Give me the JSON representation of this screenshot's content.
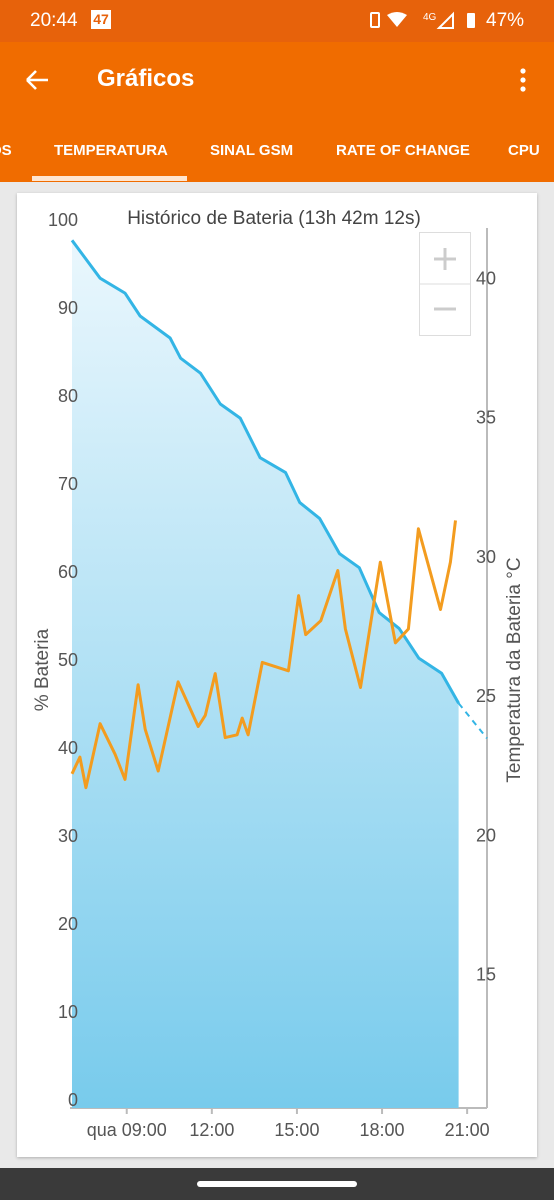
{
  "status_bar": {
    "time": "20:44",
    "notification": "47",
    "battery": "47%"
  },
  "app_bar": {
    "title": "Gráficos"
  },
  "tabs": [
    "OS",
    "TEMPERATURA",
    "SINAL GSM",
    "RATE OF CHANGE",
    "CPU"
  ],
  "selected_tab": 1,
  "chart_data": {
    "type": "line",
    "title": "Histórico de Bateria (13h 42m 12s)",
    "y_label": "% Bateria",
    "y2_label": "Temperatura da Bateria °C",
    "xlim": [
      7,
      21.7
    ],
    "xticks": [
      {
        "value": 9,
        "label": "qua 09:00"
      },
      {
        "value": 12,
        "label": "12:00"
      },
      {
        "value": 15,
        "label": "15:00"
      },
      {
        "value": 18,
        "label": "18:00"
      },
      {
        "value": 21,
        "label": "21:00"
      }
    ],
    "ylim": [
      0,
      100
    ],
    "yticks": [
      0,
      10,
      20,
      30,
      40,
      50,
      60,
      70,
      80,
      90,
      100
    ],
    "y2lim": [
      10.5,
      42.1
    ],
    "y2ticks": [
      15,
      20,
      25,
      30,
      35,
      40
    ],
    "series": [
      {
        "color": "#33b5e5",
        "fill": true,
        "x": [
          7.07,
          8.06,
          8.94,
          9.47,
          10.53,
          10.9,
          11.6,
          12.3,
          13.0,
          13.7,
          14.6,
          15.1,
          15.8,
          16.5,
          17.2,
          17.9,
          18.6,
          19.3,
          20.1,
          20.7
        ],
        "values": [
          98.6,
          94.3,
          92.6,
          90,
          87.5,
          85.2,
          83.5,
          80,
          78.4,
          73.9,
          72.2,
          68.8,
          67,
          63,
          61.4,
          56.3,
          54.5,
          51.1,
          49.4,
          46
        ]
      },
      {
        "color": "#33b5e5",
        "dashed": true,
        "x": [
          20.7,
          21.7
        ],
        "values": [
          46,
          42
        ]
      },
      {
        "color": "#f39c1f",
        "axis": "y2",
        "x": [
          7.07,
          7.35,
          7.56,
          8.06,
          8.59,
          8.94,
          9.4,
          9.65,
          10.11,
          10.81,
          11.52,
          11.77,
          12.12,
          12.47,
          12.89,
          13.07,
          13.28,
          13.78,
          14.7,
          15.06,
          15.31,
          15.84,
          16.44,
          16.71,
          17.24,
          17.94,
          18.47,
          18.93,
          19.28,
          20.06,
          20.41,
          20.59
        ],
        "values": [
          22.5,
          23.1,
          22.0,
          24.3,
          23.2,
          22.3,
          25.7,
          24.1,
          22.6,
          25.8,
          24.2,
          24.6,
          26.1,
          23.8,
          23.9,
          24.5,
          23.9,
          26.5,
          26.2,
          28.9,
          27.5,
          28.0,
          29.8,
          27.7,
          25.6,
          30.1,
          27.2,
          27.7,
          31.3,
          28.4,
          30.1,
          31.6
        ]
      }
    ]
  }
}
